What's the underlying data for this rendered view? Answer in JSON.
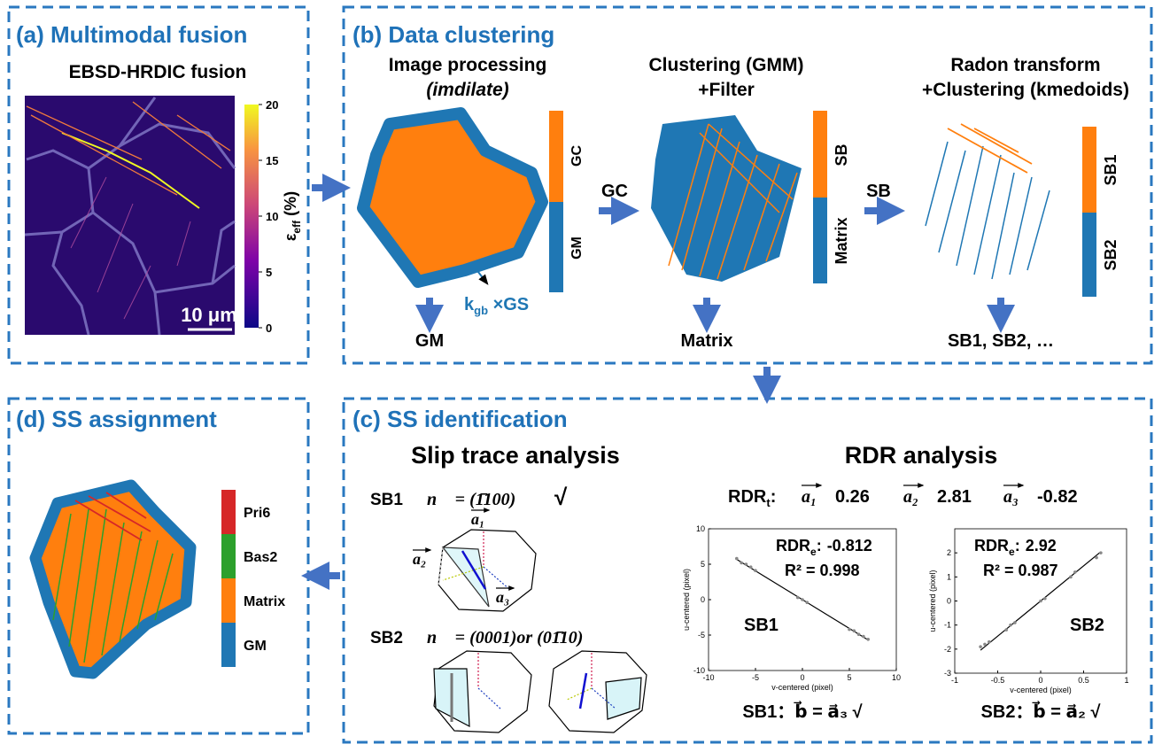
{
  "panel_a": {
    "title": "(a) Multimodal fusion",
    "subtitle": "EBSD-HRDIC fusion",
    "scale_bar": "10 μm",
    "colorbar": {
      "label_symbol": "ε",
      "label_subscript": "eff",
      "label_unit": " (%)",
      "lim": [
        0,
        20
      ],
      "ticks": [
        0,
        5,
        10,
        15,
        20
      ]
    }
  },
  "panel_b": {
    "title": "(b) Data clustering",
    "steps": [
      {
        "title_line1": "Image processing",
        "title_line2": "(imdilate)",
        "bar_labels": [
          "GC",
          "GM"
        ],
        "output": "GM"
      },
      {
        "title_line1": "Clustering (GMM)",
        "title_line2": "+Filter",
        "bar_labels": [
          "SB",
          "Matrix"
        ],
        "output": "Matrix"
      },
      {
        "title_line1": "Radon transform",
        "title_line2": "+Clustering (kmedoids)",
        "bar_labels": [
          "SB1",
          "SB2"
        ],
        "output": "SB1, SB2, …"
      }
    ],
    "arrow_labels": [
      "GC",
      "SB"
    ],
    "dilation": {
      "symbol": "k",
      "subscript": "gb",
      "rest": " ×GS"
    }
  },
  "panel_c": {
    "title": "(c) SS identification",
    "slip_title": "Slip trace analysis",
    "rdr_title": "RDR analysis",
    "slip_rows": [
      {
        "band": "SB1",
        "normal": "n⃗ = (1̄100)",
        "mark": "√"
      },
      {
        "band": "SB2",
        "normal": "n⃗ = (0001)or (01̄10)"
      }
    ],
    "vectors": [
      "a₁",
      "a₂",
      "a₃"
    ],
    "rdr_t": {
      "symbol": "RDR",
      "subscript": "t",
      "colon": ":",
      "values": [
        0.26,
        2.81,
        -0.82
      ]
    },
    "plots": [
      {
        "band": "SB1",
        "rdr_symbol": "RDR",
        "rdr_subscript": "e",
        "colon": ":",
        "rdr_e": -0.812,
        "r2_text": "R² = 0.998",
        "xlabel": "v-centered (pixel)",
        "ylabel": "u-centered (pixel)",
        "xlim": [
          -10,
          10
        ],
        "ylim": [
          -10,
          10
        ],
        "xticks": [
          -10,
          -5,
          0,
          5,
          10
        ],
        "yticks": [
          -10,
          -5,
          0,
          5,
          10
        ],
        "points": {
          "x": [
            -7,
            -6.5,
            -6,
            -5.5,
            -5,
            -0.5,
            0,
            0.5,
            5,
            5.5,
            6,
            6.5,
            7
          ],
          "y": [
            5.8,
            5.2,
            5.0,
            4.6,
            4.1,
            0.3,
            0,
            -0.4,
            -4.2,
            -4.4,
            -4.9,
            -5.2,
            -5.6
          ]
        },
        "conclusion": "SB1：b⃗ = a⃗₃  √"
      },
      {
        "band": "SB2",
        "rdr_symbol": "RDR",
        "rdr_subscript": "e",
        "colon": ":",
        "rdr_e": 2.92,
        "r2_text": "R² = 0.987",
        "xlabel": "v-centered (pixel)",
        "ylabel": "u-centered (pixel)",
        "xlim": [
          -1,
          1
        ],
        "ylim": [
          -3,
          3
        ],
        "xticks": [
          -1,
          -0.5,
          0,
          0.5,
          1
        ],
        "yticks": [
          -3,
          -2,
          -1,
          0,
          1,
          2
        ],
        "points": {
          "x": [
            -0.7,
            -0.65,
            -0.6,
            -0.4,
            -0.35,
            -0.3,
            0,
            0.05,
            0.35,
            0.4,
            0.65,
            0.7
          ],
          "y": [
            -1.9,
            -1.8,
            -1.7,
            -1.2,
            -1.0,
            -0.9,
            0,
            0.1,
            1.0,
            1.2,
            1.8,
            2.0
          ]
        },
        "conclusion": "SB2：b⃗ = a⃗₂  √"
      }
    ]
  },
  "panel_d": {
    "title": "(d) SS assignment",
    "legend": [
      {
        "name": "Pri6",
        "color": "#d62728"
      },
      {
        "name": "Bas2",
        "color": "#2ca02c"
      },
      {
        "name": "Matrix",
        "color": "#ff7f0e"
      },
      {
        "name": "GM",
        "color": "#1f77b4"
      }
    ]
  }
}
